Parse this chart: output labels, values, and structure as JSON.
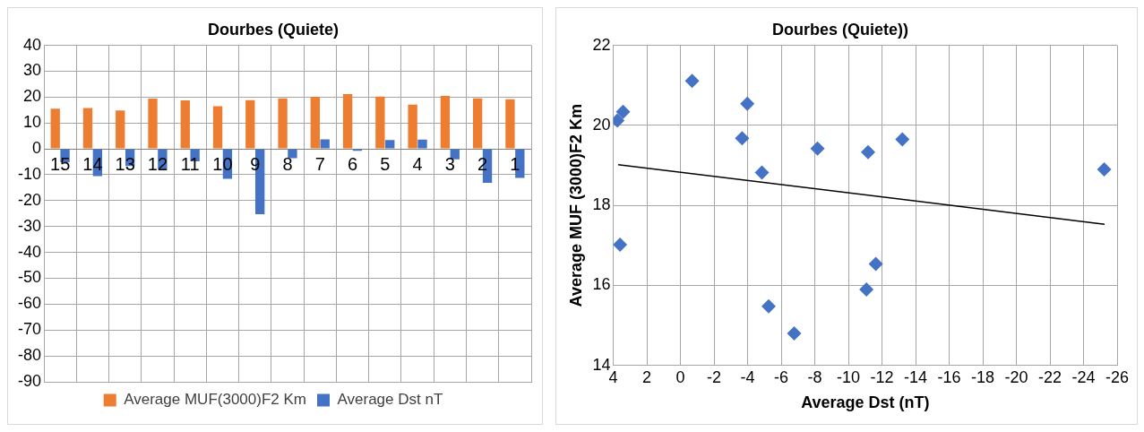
{
  "chart_data": [
    {
      "type": "bar",
      "title": "Dourbes (Quiete)",
      "categories": [
        "15",
        "14",
        "13",
        "12",
        "11",
        "10",
        "9",
        "8",
        "7",
        "6",
        "5",
        "4",
        "3",
        "2",
        "1"
      ],
      "series": [
        {
          "name": "Average MUF(3000)F2 Km",
          "color": "#ed7d31",
          "values": [
            15.5,
            15.8,
            14.8,
            19.4,
            18.7,
            16.5,
            18.8,
            19.5,
            20.1,
            21.2,
            20.2,
            17.1,
            20.5,
            19.5,
            19.2
          ]
        },
        {
          "name": "Average Dst nT",
          "color": "#4472c4",
          "values": [
            -5.2,
            -10.5,
            -6.6,
            -8.1,
            -4.8,
            -11.6,
            -25.2,
            -3.6,
            3.7,
            -0.7,
            3.4,
            3.6,
            -4.0,
            -13.1,
            -11.2
          ]
        }
      ],
      "ylim": [
        -90,
        40
      ],
      "yticks": [
        -90,
        -80,
        -70,
        -60,
        -50,
        -40,
        -30,
        -20,
        -10,
        0,
        10,
        20,
        30,
        40
      ],
      "grid": true,
      "legend": "bottom"
    },
    {
      "type": "scatter",
      "title": "Dourbes (Quiete))",
      "xlabel": "Average Dst (nT)",
      "ylabel": "Average MUF (3000)F2 Km",
      "series": [
        {
          "color": "#4472c4",
          "x": [
            3.76,
            3.42,
            3.6,
            -0.69,
            -3.98,
            -3.67,
            -4.85,
            -5.25,
            -6.77,
            -8.16,
            -11.17,
            -13.21,
            -11.63,
            -11.07,
            -25.23
          ],
          "values": [
            20.12,
            20.34,
            17.02,
            21.11,
            20.54,
            19.68,
            18.82,
            15.48,
            14.8,
            19.42,
            19.33,
            19.65,
            16.54,
            15.9,
            18.9
          ]
        },
        {
          "type": "line",
          "color": "#000000",
          "x": [
            3.71,
            -25.25
          ],
          "values": [
            19.02,
            17.53
          ],
          "marker": "none"
        }
      ],
      "xlim": [
        4,
        -26
      ],
      "xticks": [
        4,
        2,
        0,
        -2,
        -4,
        -6,
        -8,
        -10,
        -12,
        -14,
        -16,
        -18,
        -20,
        -22,
        -24,
        -26
      ],
      "ylim": [
        14,
        22
      ],
      "yticks": [
        14,
        16,
        18,
        20,
        22
      ],
      "grid": true,
      "marker": "diamond"
    }
  ]
}
